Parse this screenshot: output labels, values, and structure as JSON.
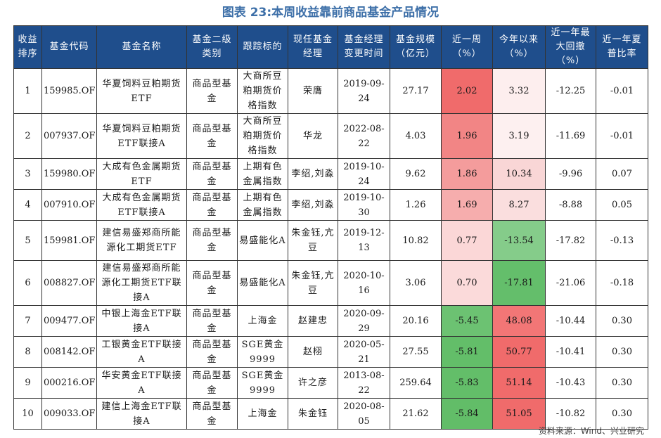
{
  "title": "图表 23:本周收益靠前商品基金产品情况",
  "headers": [
    "收益排序",
    "基金代码",
    "基金名称",
    "基金二级类别",
    "跟踪标的",
    "现任基金经理",
    "基金经理变更时间",
    "基金规模（亿元）",
    "近一周（%）",
    "今年以来（%）",
    "近一年最大回撤（%）",
    "近一年夏普比率"
  ],
  "rows": [
    {
      "rank": "1",
      "code": "159985.OF",
      "name": "华夏饲料豆粕期货ETF",
      "category": "商品型基金",
      "tracking": "大商所豆粕期货价格指数",
      "manager": "荣膺",
      "change_date": "2019-09-24",
      "size": "27.17",
      "week": "2.02",
      "ytd": "3.32",
      "drawdown": "-12.25",
      "sharpe": "-0.01",
      "week_bg": "#f06b6b",
      "ytd_bg": "#fdeeee"
    },
    {
      "rank": "2",
      "code": "007937.OF",
      "name": "华夏饲料豆粕期货ETF联接A",
      "category": "商品型基金",
      "tracking": "大商所豆粕期货价格指数",
      "manager": "华龙",
      "change_date": "2022-08-22",
      "size": "4.03",
      "week": "1.96",
      "ytd": "3.19",
      "drawdown": "-11.69",
      "sharpe": "-0.01",
      "week_bg": "#f28585",
      "ytd_bg": "#fdf0f0"
    },
    {
      "rank": "3",
      "code": "159980.OF",
      "name": "大成有色金属期货ETF",
      "category": "商品型基金",
      "tracking": "上期有色金属指数",
      "manager": "李绍,刘淼",
      "change_date": "2019-10-24",
      "size": "9.62",
      "week": "1.86",
      "ytd": "10.34",
      "drawdown": "-9.96",
      "sharpe": "0.07",
      "week_bg": "#f49c9c",
      "ytd_bg": "#f9d6d6"
    },
    {
      "rank": "4",
      "code": "007910.OF",
      "name": "大成有色金属期货ETF联接A",
      "category": "商品型基金",
      "tracking": "上期有色金属指数",
      "manager": "李绍,刘淼",
      "change_date": "2019-10-30",
      "size": "1.26",
      "week": "1.69",
      "ytd": "8.27",
      "drawdown": "-8.88",
      "sharpe": "0.05",
      "week_bg": "#f6adad",
      "ytd_bg": "#fadede"
    },
    {
      "rank": "5",
      "code": "159981.OF",
      "name": "建信易盛郑商所能源化工期货ETF",
      "category": "商品型基金",
      "tracking": "易盛能化A",
      "manager": "朱金钰,亢豆",
      "change_date": "2019-12-13",
      "size": "10.82",
      "week": "0.77",
      "ytd": "-13.54",
      "drawdown": "-17.82",
      "sharpe": "-0.13",
      "week_bg": "#fbd7d7",
      "ytd_bg": "#85cc8a"
    },
    {
      "rank": "6",
      "code": "008827.OF",
      "name": "建信易盛郑商所能源化工期货ETF联接A",
      "category": "商品型基金",
      "tracking": "易盛能化A",
      "manager": "朱金钰,亢豆",
      "change_date": "2020-10-16",
      "size": "3.06",
      "week": "0.70",
      "ytd": "-17.81",
      "drawdown": "-21.06",
      "sharpe": "-0.18",
      "week_bg": "#fbdada",
      "ytd_bg": "#64be6b"
    },
    {
      "rank": "7",
      "code": "009477.OF",
      "name": "中银上海金ETF联接A",
      "category": "商品型基金",
      "tracking": "上海金",
      "manager": "赵建忠",
      "change_date": "2020-09-29",
      "size": "20.16",
      "week": "-5.45",
      "ytd": "48.08",
      "drawdown": "-10.44",
      "sharpe": "0.30",
      "week_bg": "#6cc272",
      "ytd_bg": "#f27676"
    },
    {
      "rank": "8",
      "code": "008142.OF",
      "name": "工银黄金ETF联接A",
      "category": "商品型基金",
      "tracking": "SGE黄金9999",
      "manager": "赵栩",
      "change_date": "2020-05-21",
      "size": "27.55",
      "week": "-5.81",
      "ytd": "50.77",
      "drawdown": "-10.41",
      "sharpe": "0.30",
      "week_bg": "#63be69",
      "ytd_bg": "#f06b6b"
    },
    {
      "rank": "9",
      "code": "000216.OF",
      "name": "华安黄金ETF联接A",
      "category": "商品型基金",
      "tracking": "SGE黄金9999",
      "manager": "许之彦",
      "change_date": "2013-08-22",
      "size": "259.64",
      "week": "-5.83",
      "ytd": "51.14",
      "drawdown": "-10.43",
      "sharpe": "0.30",
      "week_bg": "#63be69",
      "ytd_bg": "#f06b6b"
    },
    {
      "rank": "10",
      "code": "009033.OF",
      "name": "建信上海金ETF联接A",
      "category": "商品型基金",
      "tracking": "上海金",
      "manager": "朱金钰",
      "change_date": "2020-08-05",
      "size": "21.62",
      "week": "-5.84",
      "ytd": "51.05",
      "drawdown": "-10.82",
      "sharpe": "0.30",
      "week_bg": "#62bd68",
      "ytd_bg": "#f06b6b"
    }
  ],
  "source": "资料来源：Wind、兴业研究"
}
